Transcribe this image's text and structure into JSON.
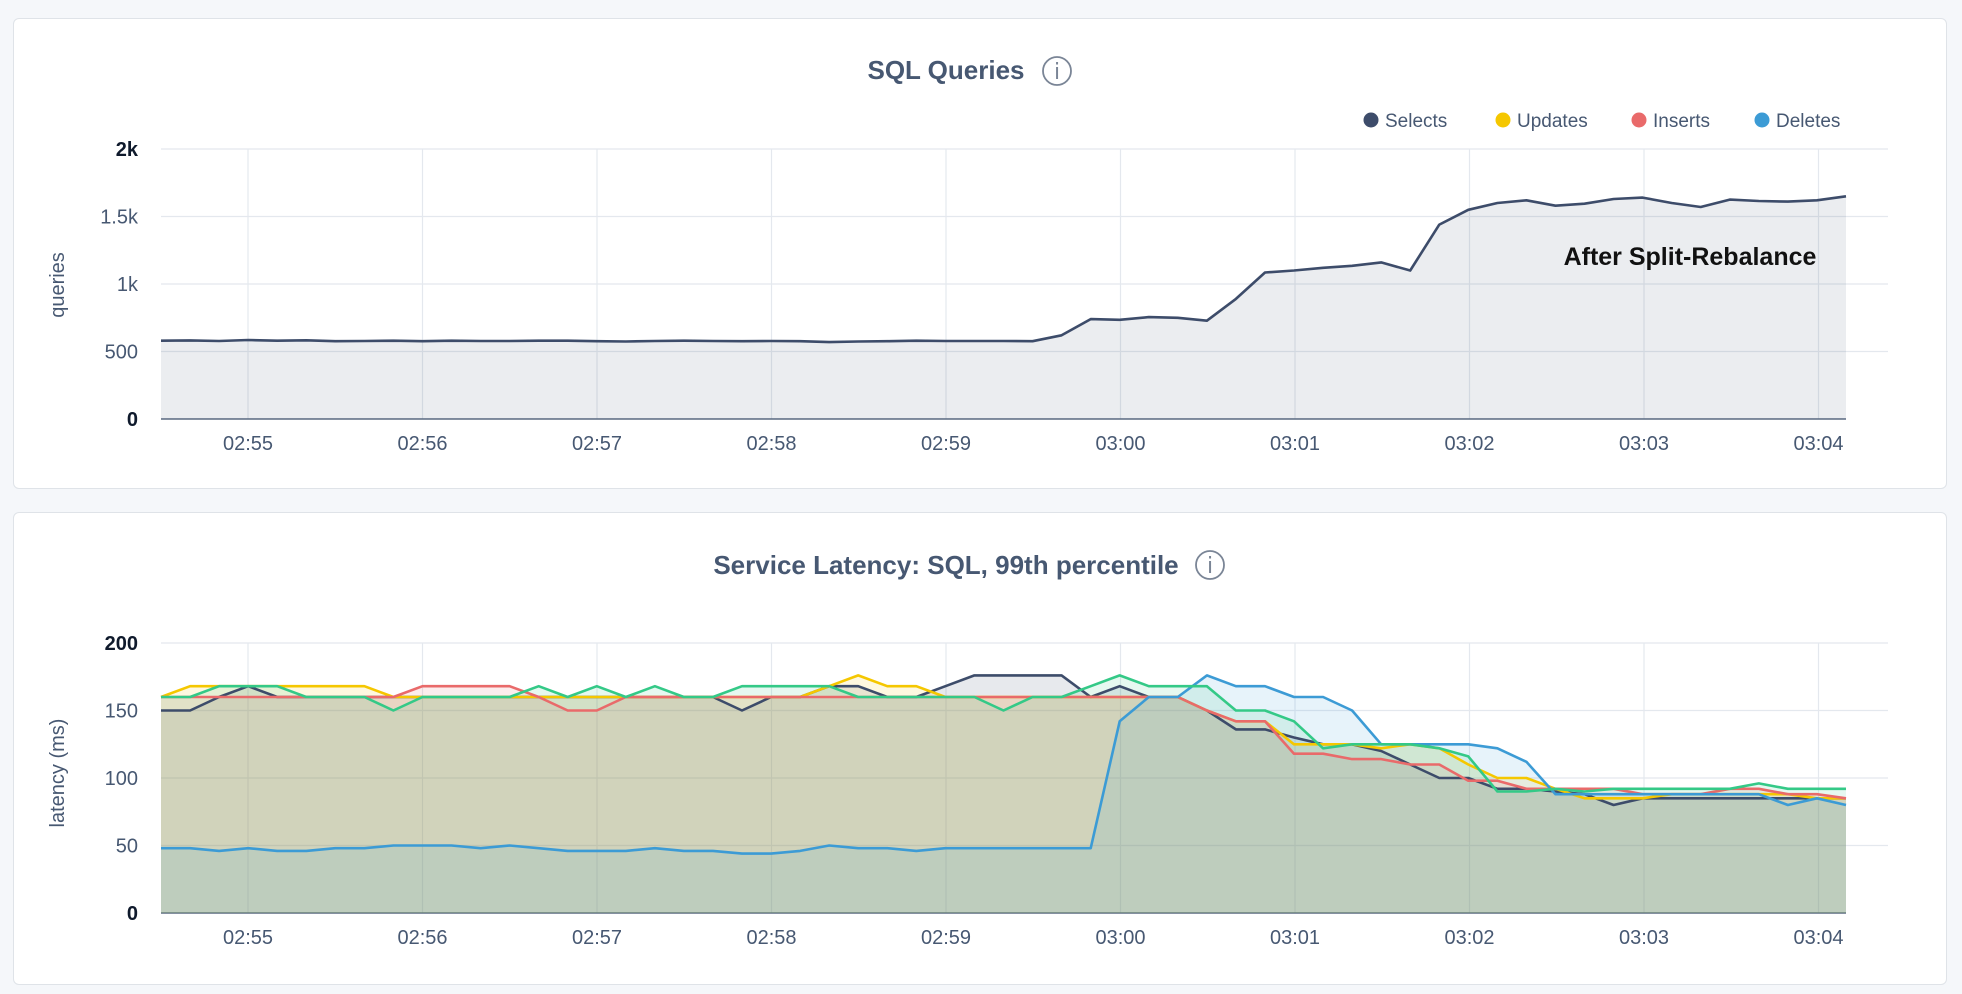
{
  "chart_data": [
    {
      "type": "area",
      "title": "SQL Queries",
      "ylabel": "queries",
      "ylim": [
        0,
        2000
      ],
      "yticks": [
        "0",
        "500",
        "1k",
        "1.5k",
        "2k"
      ],
      "xticks": [
        "02:55",
        "02:56",
        "02:57",
        "02:58",
        "02:59",
        "03:00",
        "03:01",
        "03:02",
        "03:03",
        "03:04"
      ],
      "xrange_minutes": [
        0,
        580
      ],
      "legend": [
        {
          "name": "Selects",
          "color": "#3d4c6a"
        },
        {
          "name": "Updates",
          "color": "#f5c700"
        },
        {
          "name": "Inserts",
          "color": "#e96a6a"
        },
        {
          "name": "Deletes",
          "color": "#3c9bd5"
        }
      ],
      "annotation": "After Split-Rebalance",
      "series": [
        {
          "name": "Selects",
          "color": "#3d4c6a",
          "values": [
            580,
            582,
            578,
            585,
            580,
            583,
            576,
            578,
            580,
            576,
            580,
            578,
            578,
            580,
            580,
            576,
            574,
            578,
            580,
            578,
            576,
            578,
            576,
            570,
            574,
            576,
            580,
            578,
            578,
            578,
            576,
            620,
            740,
            735,
            755,
            750,
            728,
            890,
            1085,
            1100,
            1120,
            1135,
            1160,
            1100,
            1440,
            1550,
            1600,
            1620,
            1580,
            1595,
            1630,
            1640,
            1600,
            1570,
            1625,
            1615,
            1610,
            1620,
            1650
          ]
        }
      ]
    },
    {
      "type": "area",
      "title": "Service Latency: SQL, 99th percentile",
      "ylabel": "latency (ms)",
      "ylim": [
        0,
        200
      ],
      "yticks": [
        "0",
        "50",
        "100",
        "150",
        "200"
      ],
      "xticks": [
        "02:55",
        "02:56",
        "02:57",
        "02:58",
        "02:59",
        "03:00",
        "03:01",
        "03:02",
        "03:03",
        "03:04"
      ],
      "xrange_minutes": [
        0,
        580
      ],
      "series": [
        {
          "name": "Selects",
          "color": "#3d4c6a",
          "values": [
            150,
            150,
            160,
            168,
            160,
            160,
            160,
            160,
            160,
            160,
            160,
            160,
            160,
            160,
            160,
            160,
            160,
            160,
            160,
            160,
            150,
            160,
            160,
            168,
            168,
            160,
            160,
            168,
            176,
            176,
            176,
            176,
            160,
            168,
            160,
            160,
            150,
            136,
            136,
            130,
            125,
            125,
            120,
            110,
            100,
            100,
            92,
            92,
            90,
            88,
            80,
            85,
            85,
            85,
            85,
            85,
            85,
            85,
            85
          ]
        },
        {
          "name": "Updates",
          "color": "#f5c700",
          "values": [
            160,
            168,
            168,
            168,
            168,
            168,
            168,
            168,
            160,
            160,
            160,
            160,
            160,
            160,
            160,
            160,
            160,
            160,
            160,
            160,
            160,
            160,
            160,
            168,
            176,
            168,
            168,
            160,
            160,
            160,
            160,
            160,
            160,
            160,
            160,
            160,
            150,
            142,
            142,
            125,
            125,
            125,
            122,
            125,
            122,
            110,
            100,
            100,
            92,
            85,
            85,
            85,
            88,
            88,
            88,
            88,
            88,
            85,
            85
          ]
        },
        {
          "name": "Inserts",
          "color": "#e96a6a",
          "values": [
            160,
            160,
            160,
            160,
            160,
            160,
            160,
            160,
            160,
            168,
            168,
            168,
            168,
            160,
            150,
            150,
            160,
            160,
            160,
            160,
            160,
            160,
            160,
            160,
            160,
            160,
            160,
            160,
            160,
            160,
            160,
            160,
            160,
            160,
            160,
            160,
            150,
            142,
            142,
            118,
            118,
            114,
            114,
            110,
            110,
            98,
            98,
            92,
            92,
            92,
            92,
            88,
            88,
            88,
            92,
            92,
            88,
            88,
            85
          ]
        },
        {
          "name": "Deletes",
          "color": "#3c9bd5",
          "values": [
            48,
            48,
            46,
            48,
            46,
            46,
            48,
            48,
            50,
            50,
            50,
            48,
            50,
            48,
            46,
            46,
            46,
            48,
            46,
            46,
            44,
            44,
            46,
            50,
            48,
            48,
            46,
            48,
            48,
            48,
            48,
            48,
            48,
            142,
            160,
            160,
            176,
            168,
            168,
            160,
            160,
            150,
            125,
            125,
            125,
            125,
            122,
            112,
            88,
            88,
            88,
            88,
            88,
            88,
            88,
            88,
            80,
            85,
            80
          ]
        },
        {
          "name": "Green",
          "color": "#34c987",
          "values": [
            160,
            160,
            168,
            168,
            168,
            160,
            160,
            160,
            150,
            160,
            160,
            160,
            160,
            168,
            160,
            168,
            160,
            168,
            160,
            160,
            168,
            168,
            168,
            168,
            160,
            160,
            160,
            160,
            160,
            150,
            160,
            160,
            168,
            176,
            168,
            168,
            168,
            150,
            150,
            142,
            122,
            125,
            125,
            125,
            122,
            116,
            90,
            90,
            92,
            90,
            92,
            92,
            92,
            92,
            92,
            96,
            92,
            92,
            92
          ]
        }
      ]
    }
  ]
}
